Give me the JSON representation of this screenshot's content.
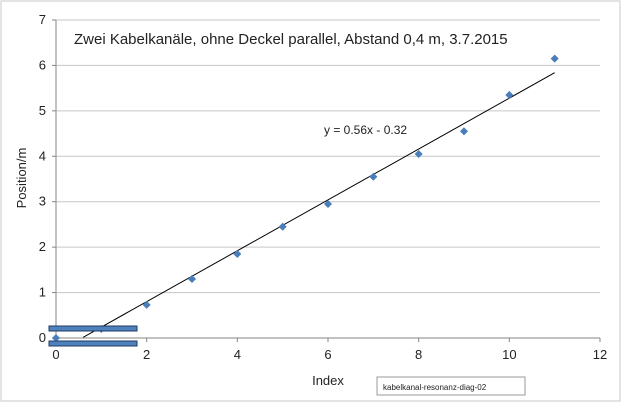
{
  "chart_data": {
    "type": "scatter",
    "title": "Zwei Kabelkanäle, ohne Deckel parallel, Abstand 0,4 m, 3.7.2015",
    "xlabel": "Index",
    "ylabel": "Position/m",
    "xlim": [
      0,
      12
    ],
    "ylim": [
      0,
      7
    ],
    "x_ticks": [
      0,
      2,
      4,
      6,
      8,
      10,
      12
    ],
    "y_ticks": [
      0,
      1,
      2,
      3,
      4,
      5,
      6,
      7
    ],
    "grid": "horizontal",
    "legend": "none",
    "points": {
      "x": [
        0,
        1,
        2,
        3,
        4,
        5,
        6,
        7,
        8,
        9,
        10,
        11
      ],
      "y": [
        0.0,
        0.2,
        0.73,
        1.3,
        1.85,
        2.45,
        2.95,
        3.55,
        4.05,
        4.55,
        5.35,
        6.15
      ]
    },
    "trendline": {
      "slope": 0.56,
      "intercept": -0.32,
      "x_range": [
        0.6,
        11
      ],
      "equation_label": "y = 0.56x - 0.32"
    },
    "caption_box": "kabelkanal-resonanz-diag-02",
    "colors": {
      "marker": "#4a7ebb",
      "gridline": "#c6c6c6",
      "axis": "#868686",
      "trendline": "#000000",
      "bars_fill": "#4f81bd",
      "bars_stroke": "#1f3a63",
      "frame_border": "#c8c8c8"
    }
  }
}
